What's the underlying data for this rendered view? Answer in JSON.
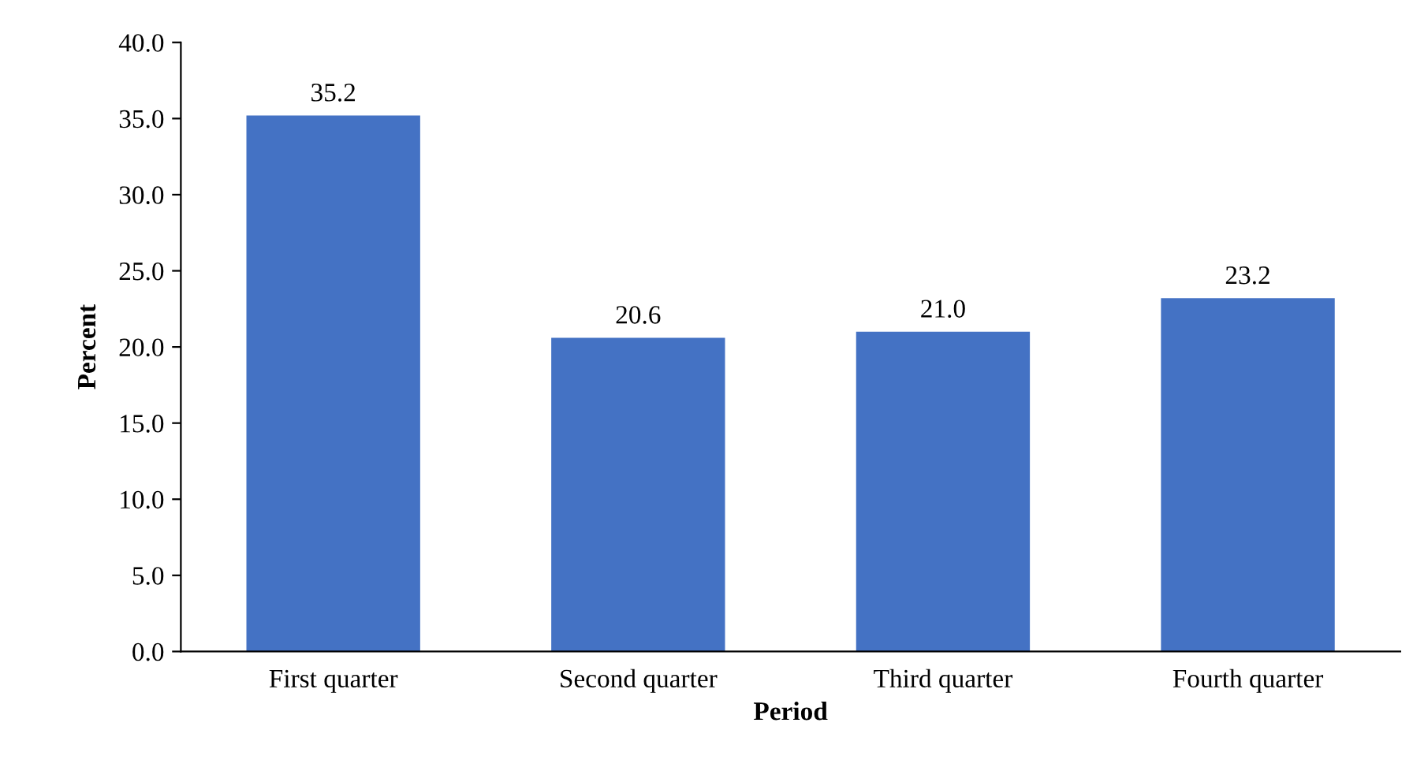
{
  "chart_data": {
    "type": "bar",
    "xlabel": "Period",
    "ylabel": "Percent",
    "categories": [
      "First quarter",
      "Second quarter",
      "Third quarter",
      "Fourth quarter"
    ],
    "values": [
      35.2,
      20.6,
      21.0,
      23.2
    ],
    "color": "#4472c4",
    "ylim": [
      0,
      40
    ],
    "yticks": [
      {
        "value": 0,
        "label": "0.0"
      },
      {
        "value": 5,
        "label": "5.0"
      },
      {
        "value": 10,
        "label": "10.0"
      },
      {
        "value": 15,
        "label": "15.0"
      },
      {
        "value": 20,
        "label": "20.0"
      },
      {
        "value": 25,
        "label": "25.0"
      },
      {
        "value": 30,
        "label": "30.0"
      },
      {
        "value": 35,
        "label": "35.0"
      },
      {
        "value": 40,
        "label": "40.0"
      }
    ],
    "value_labels": [
      "35.2",
      "20.6",
      "21.0",
      "23.2"
    ],
    "grid": false,
    "legend": false
  }
}
